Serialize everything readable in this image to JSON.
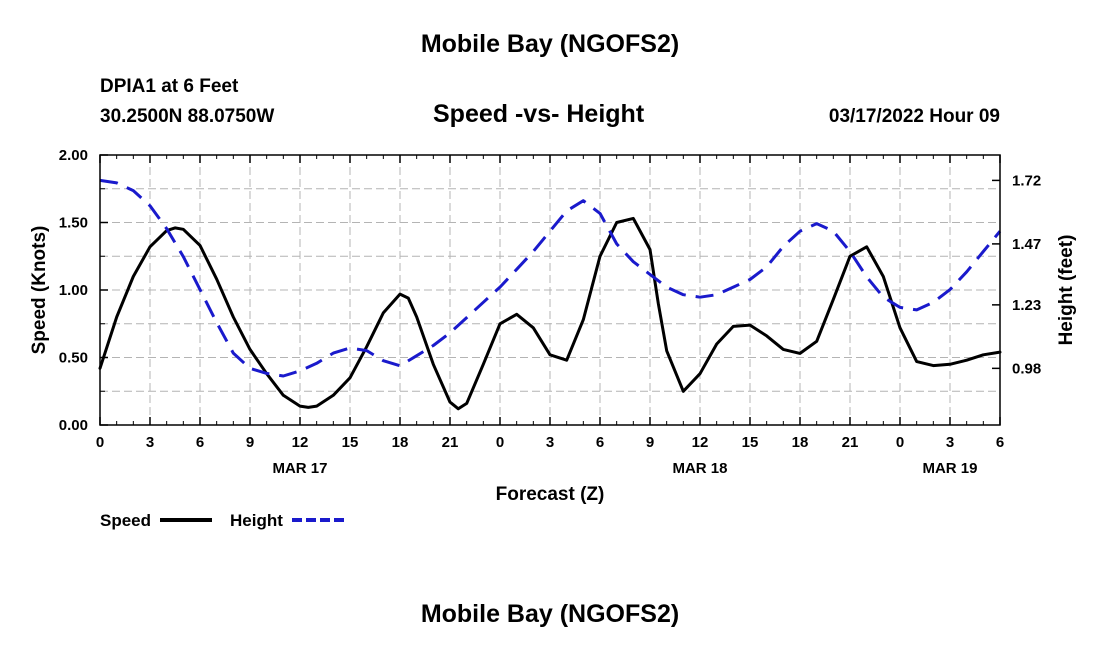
{
  "header": {
    "title": "Mobile Bay (NGOFS2)",
    "station": "DPIA1 at 6 Feet",
    "coords": "30.2500N  88.0750W",
    "subtitle": "Speed -vs- Height",
    "datetime": "03/17/2022 Hour 09",
    "footer_title": "Mobile Bay (NGOFS2)"
  },
  "colors": {
    "speed": "#000000",
    "height": "#1a1acc",
    "grid": "#b4b4b4"
  },
  "chart_data": {
    "type": "line",
    "title": "Speed -vs- Height",
    "xlabel": "Forecast (Z)",
    "ylabel": "Speed (Knots)",
    "ylabel_right": "Height (feet)",
    "x_tick_labels": [
      "0",
      "3",
      "6",
      "9",
      "12",
      "15",
      "18",
      "21",
      "0",
      "3",
      "6",
      "9",
      "12",
      "15",
      "18",
      "21",
      "0",
      "3",
      "6"
    ],
    "date_labels": [
      {
        "label": "MAR 17",
        "hour": 12
      },
      {
        "label": "MAR 18",
        "hour": 36
      },
      {
        "label": "MAR 19",
        "hour": 51
      }
    ],
    "y_left": {
      "range": [
        0,
        2.0
      ],
      "ticks": [
        "0.00",
        "0.50",
        "1.00",
        "1.50",
        "2.00"
      ]
    },
    "y_right": {
      "range": [
        0.757,
        1.82
      ],
      "ticks": [
        "0.98",
        "1.23",
        "1.47",
        "1.72"
      ]
    },
    "grid": true,
    "legend_position": "bottom-left",
    "series": [
      {
        "name": "Speed",
        "axis": "left",
        "style": "solid",
        "x": [
          0,
          1,
          2,
          3,
          4,
          4.5,
          5,
          6,
          7,
          8,
          9,
          10,
          11,
          12,
          12.5,
          13,
          14,
          15,
          16,
          17,
          18,
          18.5,
          19,
          20,
          21,
          21.5,
          22,
          23,
          24,
          25,
          26,
          27,
          28,
          29,
          30,
          31,
          32,
          33,
          33.5,
          34,
          35,
          36,
          37,
          38,
          39,
          40,
          41,
          42,
          43,
          44,
          45,
          46,
          47,
          48,
          49,
          50,
          51,
          52,
          53,
          54
        ],
        "y": [
          0.42,
          0.8,
          1.1,
          1.32,
          1.44,
          1.46,
          1.45,
          1.33,
          1.08,
          0.8,
          0.56,
          0.38,
          0.22,
          0.14,
          0.13,
          0.14,
          0.22,
          0.35,
          0.58,
          0.83,
          0.97,
          0.94,
          0.8,
          0.45,
          0.17,
          0.12,
          0.16,
          0.45,
          0.75,
          0.82,
          0.72,
          0.52,
          0.48,
          0.78,
          1.25,
          1.5,
          1.53,
          1.3,
          0.9,
          0.55,
          0.25,
          0.38,
          0.6,
          0.73,
          0.74,
          0.66,
          0.56,
          0.53,
          0.62,
          0.93,
          1.25,
          1.32,
          1.1,
          0.72,
          0.47,
          0.44,
          0.45,
          0.48,
          0.52,
          0.54
        ]
      },
      {
        "name": "Height",
        "axis": "right",
        "style": "dashed",
        "x": [
          0,
          1,
          2,
          3,
          4,
          5,
          6,
          7,
          8,
          9,
          10,
          11,
          12,
          13,
          14,
          15,
          16,
          17,
          18,
          19,
          20,
          21,
          22,
          23,
          24,
          25,
          26,
          27,
          28,
          29,
          30,
          31,
          32,
          33,
          34,
          35,
          36,
          37,
          38,
          39,
          40,
          41,
          42,
          43,
          44,
          45,
          46,
          47,
          48,
          49,
          50,
          51,
          52,
          53,
          54
        ],
        "y": [
          1.72,
          1.71,
          1.68,
          1.62,
          1.53,
          1.42,
          1.29,
          1.16,
          1.04,
          0.98,
          0.96,
          0.95,
          0.97,
          1.0,
          1.04,
          1.06,
          1.05,
          1.01,
          0.99,
          1.03,
          1.07,
          1.12,
          1.18,
          1.24,
          1.3,
          1.37,
          1.44,
          1.52,
          1.6,
          1.64,
          1.59,
          1.47,
          1.4,
          1.35,
          1.3,
          1.27,
          1.26,
          1.27,
          1.3,
          1.33,
          1.38,
          1.46,
          1.52,
          1.55,
          1.52,
          1.44,
          1.34,
          1.26,
          1.22,
          1.21,
          1.24,
          1.29,
          1.36,
          1.44,
          1.52
        ]
      }
    ]
  }
}
